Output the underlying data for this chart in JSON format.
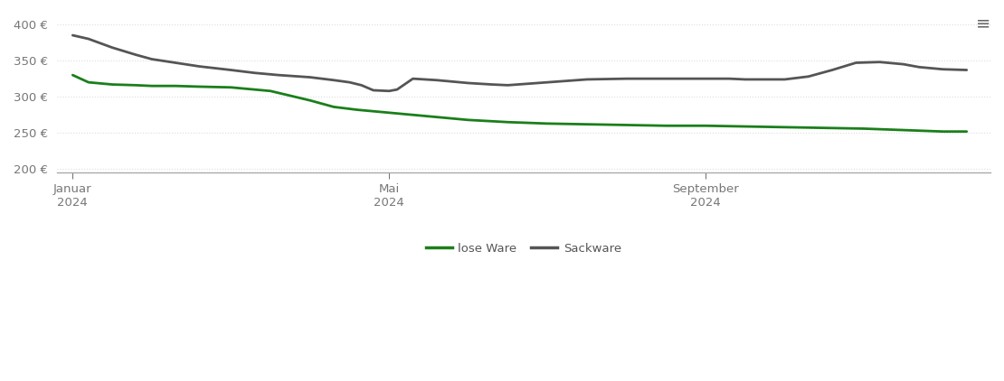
{
  "background_color": "#ffffff",
  "grid_color": "#dddddd",
  "grid_style": "dotted",
  "ylim": [
    195,
    415
  ],
  "yticks": [
    200,
    250,
    300,
    350,
    400
  ],
  "legend_labels": [
    "lose Ware",
    "Sackware"
  ],
  "lose_ware_color": "#1a7f1a",
  "sackware_color": "#555555",
  "linewidth": 2.0,
  "lose_x": [
    0,
    0.2,
    0.5,
    0.8,
    1.0,
    1.3,
    1.6,
    2.0,
    2.5,
    3.0,
    3.3,
    3.6,
    4.0,
    4.5,
    5.0,
    5.5,
    6.0,
    6.5,
    7.0,
    7.5,
    8.0,
    8.5,
    9.0,
    9.5,
    10.0,
    10.5,
    11.0,
    11.3
  ],
  "lose_y": [
    330,
    320,
    317,
    316,
    315,
    315,
    314,
    313,
    308,
    295,
    286,
    282,
    278,
    273,
    268,
    265,
    263,
    262,
    261,
    260,
    260,
    259,
    258,
    257,
    256,
    254,
    252,
    252
  ],
  "sack_x": [
    0,
    0.2,
    0.5,
    0.8,
    1.0,
    1.3,
    1.6,
    2.0,
    2.3,
    2.6,
    3.0,
    3.3,
    3.5,
    3.65,
    3.8,
    4.0,
    4.1,
    4.3,
    4.6,
    5.0,
    5.3,
    5.5,
    6.0,
    6.5,
    7.0,
    7.5,
    8.0,
    8.3,
    8.5,
    9.0,
    9.3,
    9.6,
    9.9,
    10.2,
    10.5,
    10.7,
    11.0,
    11.3
  ],
  "sack_y": [
    385,
    380,
    368,
    358,
    352,
    347,
    342,
    337,
    333,
    330,
    327,
    323,
    320,
    316,
    309,
    308,
    310,
    325,
    323,
    319,
    317,
    316,
    320,
    324,
    325,
    325,
    325,
    325,
    324,
    324,
    328,
    337,
    347,
    348,
    345,
    341,
    338,
    337
  ],
  "xlim": [
    -0.2,
    11.6
  ],
  "xtick_positions": [
    0,
    4,
    8
  ],
  "xtick_labels": [
    "Januar\n2024",
    "Mai\n2024",
    "September\n2024"
  ],
  "hamburger_char": "≡"
}
